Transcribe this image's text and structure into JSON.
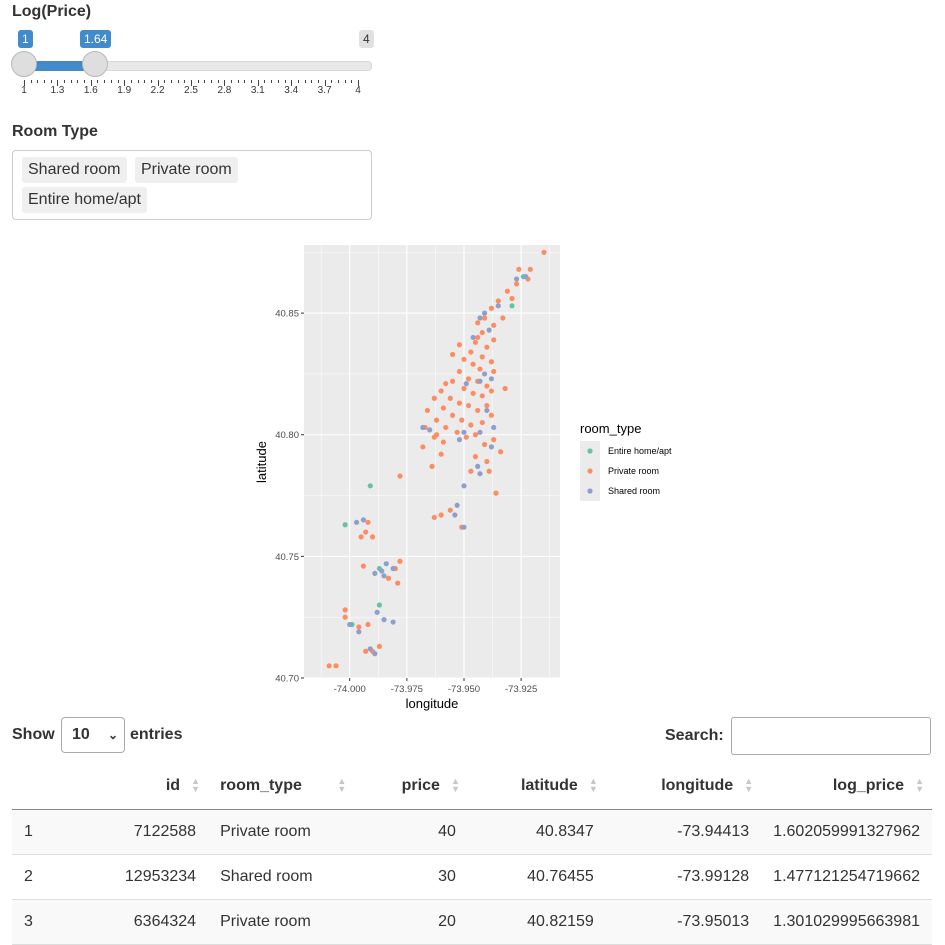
{
  "slider": {
    "label": "Log(Price)",
    "min": 1,
    "max": 4,
    "value_low": 1,
    "value_high": 1.64,
    "min_label": "1",
    "max_label": "4",
    "low_label": "1",
    "high_label": "1.64",
    "ticks": [
      "1",
      "1.3",
      "1.6",
      "1.9",
      "2.2",
      "2.5",
      "2.8",
      "3.1",
      "3.4",
      "3.7",
      "4"
    ]
  },
  "room_select": {
    "label": "Room Type",
    "selected": [
      "Shared room",
      "Private room",
      "Entire home/apt"
    ]
  },
  "chart_data": {
    "type": "scatter",
    "xlabel": "longitude",
    "ylabel": "latitude",
    "xlim": [
      -74.02,
      -73.908
    ],
    "ylim": [
      40.7,
      40.878
    ],
    "x_ticks": [
      -74.0,
      -73.975,
      -73.95,
      -73.925
    ],
    "x_tick_labels": [
      "-74.000",
      "-73.975",
      "-73.950",
      "-73.925"
    ],
    "y_ticks": [
      40.7,
      40.75,
      40.8,
      40.85
    ],
    "y_tick_labels": [
      "40.70",
      "40.75",
      "40.80",
      "40.85"
    ],
    "grid": true,
    "legend_position": "right",
    "legend_title": "room_type",
    "series": [
      {
        "name": "Entire home/apt",
        "color": "#66c2a5",
        "points": [
          [
            -73.991,
            40.779
          ],
          [
            -74.002,
            40.763
          ],
          [
            -73.987,
            40.73
          ],
          [
            -73.999,
            40.722
          ],
          [
            -73.924,
            40.865
          ],
          [
            -73.929,
            40.853
          ],
          [
            -73.987,
            40.745
          ]
        ]
      },
      {
        "name": "Private room",
        "color": "#fc8d62",
        "points": [
          [
            -73.915,
            40.875
          ],
          [
            -73.921,
            40.868
          ],
          [
            -73.926,
            40.868
          ],
          [
            -73.922,
            40.864
          ],
          [
            -73.927,
            40.862
          ],
          [
            -73.931,
            40.859
          ],
          [
            -73.935,
            40.855
          ],
          [
            -73.929,
            40.856
          ],
          [
            -73.938,
            40.852
          ],
          [
            -73.933,
            40.848
          ],
          [
            -73.941,
            40.848
          ],
          [
            -73.937,
            40.845
          ],
          [
            -73.944,
            40.846
          ],
          [
            -73.942,
            40.842
          ],
          [
            -73.937,
            40.839
          ],
          [
            -73.945,
            40.838
          ],
          [
            -73.94,
            40.836
          ],
          [
            -73.947,
            40.834
          ],
          [
            -73.942,
            40.832
          ],
          [
            -73.938,
            40.83
          ],
          [
            -73.95,
            40.831
          ],
          [
            -73.946,
            40.829
          ],
          [
            -73.943,
            40.827
          ],
          [
            -73.937,
            40.826
          ],
          [
            -73.952,
            40.826
          ],
          [
            -73.948,
            40.823
          ],
          [
            -73.944,
            40.822
          ],
          [
            -73.94,
            40.82
          ],
          [
            -73.955,
            40.822
          ],
          [
            -73.958,
            40.821
          ],
          [
            -73.95,
            40.819
          ],
          [
            -73.946,
            40.817
          ],
          [
            -73.942,
            40.816
          ],
          [
            -73.938,
            40.818
          ],
          [
            -73.96,
            40.818
          ],
          [
            -73.956,
            40.815
          ],
          [
            -73.952,
            40.813
          ],
          [
            -73.948,
            40.812
          ],
          [
            -73.944,
            40.81
          ],
          [
            -73.94,
            40.812
          ],
          [
            -73.963,
            40.815
          ],
          [
            -73.959,
            40.811
          ],
          [
            -73.955,
            40.808
          ],
          [
            -73.951,
            40.806
          ],
          [
            -73.947,
            40.804
          ],
          [
            -73.942,
            40.805
          ],
          [
            -73.938,
            40.808
          ],
          [
            -73.966,
            40.81
          ],
          [
            -73.962,
            40.806
          ],
          [
            -73.958,
            40.803
          ],
          [
            -73.953,
            40.801
          ],
          [
            -73.949,
            40.799
          ],
          [
            -73.945,
            40.8
          ],
          [
            -73.967,
            40.803
          ],
          [
            -73.963,
            40.799
          ],
          [
            -73.959,
            40.797
          ],
          [
            -73.941,
            40.796
          ],
          [
            -73.937,
            40.798
          ],
          [
            -73.968,
            40.795
          ],
          [
            -73.96,
            40.792
          ],
          [
            -73.945,
            40.791
          ],
          [
            -73.94,
            40.789
          ],
          [
            -73.947,
            40.785
          ],
          [
            -73.964,
            40.787
          ],
          [
            -73.978,
            40.783
          ],
          [
            -73.963,
            40.766
          ],
          [
            -73.96,
            40.767
          ],
          [
            -73.951,
            40.762
          ],
          [
            -73.956,
            40.769
          ],
          [
            -73.993,
            40.76
          ],
          [
            -73.995,
            40.758
          ],
          [
            -73.99,
            40.758
          ],
          [
            -73.992,
            40.764
          ],
          [
            -73.994,
            40.746
          ],
          [
            -73.978,
            40.748
          ],
          [
            -73.98,
            40.745
          ],
          [
            -73.979,
            40.739
          ],
          [
            -73.983,
            40.741
          ],
          [
            -74.002,
            40.728
          ],
          [
            -74.002,
            40.725
          ],
          [
            -73.996,
            40.721
          ],
          [
            -73.992,
            40.722
          ],
          [
            -73.987,
            40.713
          ],
          [
            -73.99,
            40.711
          ],
          [
            -73.993,
            40.711
          ],
          [
            -74.006,
            40.705
          ],
          [
            -74.009,
            40.705
          ],
          [
            -73.936,
            40.776
          ],
          [
            -73.939,
            40.785
          ],
          [
            -73.934,
            40.793
          ],
          [
            -73.932,
            40.819
          ],
          [
            -73.944,
            40.84
          ],
          [
            -73.955,
            40.833
          ],
          [
            -73.952,
            40.837
          ],
          [
            -73.962,
            40.8
          ]
        ]
      },
      {
        "name": "Shared room",
        "color": "#8da0cb",
        "points": [
          [
            -73.923,
            40.865
          ],
          [
            -73.927,
            40.864
          ],
          [
            -73.935,
            40.853
          ],
          [
            -73.941,
            40.85
          ],
          [
            -73.943,
            40.848
          ],
          [
            -73.939,
            40.843
          ],
          [
            -73.946,
            40.84
          ],
          [
            -73.941,
            40.825
          ],
          [
            -73.938,
            40.823
          ],
          [
            -73.943,
            40.822
          ],
          [
            -73.949,
            40.821
          ],
          [
            -73.94,
            40.81
          ],
          [
            -73.937,
            40.803
          ],
          [
            -73.943,
            40.801
          ],
          [
            -73.95,
            40.801
          ],
          [
            -73.952,
            40.798
          ],
          [
            -73.968,
            40.803
          ],
          [
            -73.965,
            40.802
          ],
          [
            -73.938,
            40.795
          ],
          [
            -73.944,
            40.787
          ],
          [
            -73.943,
            40.784
          ],
          [
            -73.95,
            40.779
          ],
          [
            -73.953,
            40.771
          ],
          [
            -73.954,
            40.767
          ],
          [
            -73.95,
            40.762
          ],
          [
            -73.997,
            40.764
          ],
          [
            -73.994,
            40.765
          ],
          [
            -73.984,
            40.747
          ],
          [
            -73.986,
            40.744
          ],
          [
            -73.989,
            40.743
          ],
          [
            -73.981,
            40.745
          ],
          [
            -73.985,
            40.742
          ],
          [
            -73.988,
            40.727
          ],
          [
            -73.985,
            40.724
          ],
          [
            -73.981,
            40.723
          ],
          [
            -73.996,
            40.719
          ],
          [
            -73.991,
            40.712
          ],
          [
            -73.989,
            40.71
          ],
          [
            -74.0,
            40.722
          ]
        ]
      }
    ]
  },
  "table": {
    "show_label": "Show",
    "entries_label": "entries",
    "length_value": "10",
    "search_label": "Search:",
    "search_value": "",
    "columns": [
      "",
      "id",
      "room_type",
      "price",
      "latitude",
      "longitude",
      "log_price"
    ],
    "rows": [
      [
        "1",
        "7122588",
        "Private room",
        "40",
        "40.8347",
        "-73.94413",
        "1.602059991327962"
      ],
      [
        "2",
        "12953234",
        "Shared room",
        "30",
        "40.76455",
        "-73.99128",
        "1.477121254719662"
      ],
      [
        "3",
        "6364324",
        "Private room",
        "20",
        "40.82159",
        "-73.95013",
        "1.301029995663981"
      ]
    ]
  }
}
